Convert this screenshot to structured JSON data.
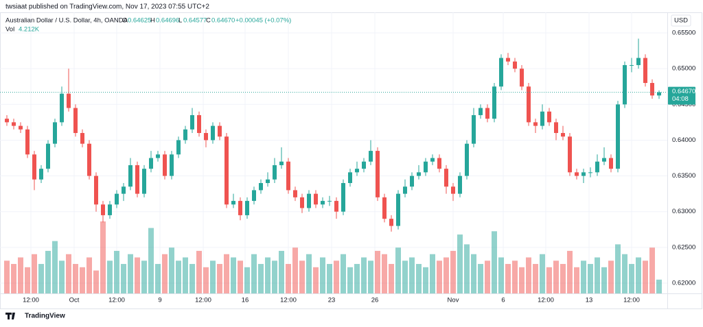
{
  "header": {
    "publisher": "twsiaat published on TradingView.com, Nov 17, 2023 07:55 UTC+2"
  },
  "footer": {
    "brand": "TradingView"
  },
  "chart_data": {
    "type": "candlestick",
    "legend": {
      "symbol": "Australian Dollar / U.S. Dollar, 4h, OANDA",
      "o_label": "O",
      "o": "0.64625",
      "h_label": "H",
      "h": "0.64696",
      "l_label": "L",
      "l": "0.64577",
      "c_label": "C",
      "c": "0.64670",
      "change": "+0.00045 (+0.07%)",
      "vol_label": "Vol",
      "vol": "4.212K"
    },
    "currency": "USD",
    "last_price_label": "0.64670",
    "countdown": "04:08",
    "up_color": "#26a69a",
    "down_color": "#ef5350",
    "open": [
      0.643,
      0.6425,
      0.642,
      0.6415,
      0.638,
      0.6345,
      0.636,
      0.6395,
      0.6425,
      0.6465,
      0.6445,
      0.641,
      0.6395,
      0.635,
      0.631,
      0.6295,
      0.631,
      0.6325,
      0.6335,
      0.6365,
      0.6325,
      0.636,
      0.6375,
      0.638,
      0.635,
      0.638,
      0.64,
      0.6415,
      0.6435,
      0.641,
      0.64,
      0.642,
      0.6405,
      0.631,
      0.6315,
      0.6295,
      0.6315,
      0.633,
      0.634,
      0.6345,
      0.6365,
      0.637,
      0.633,
      0.632,
      0.6305,
      0.6325,
      0.631,
      0.6315,
      0.6315,
      0.63,
      0.634,
      0.6355,
      0.636,
      0.637,
      0.6385,
      0.632,
      0.629,
      0.628,
      0.6325,
      0.6335,
      0.635,
      0.6355,
      0.637,
      0.6375,
      0.636,
      0.6335,
      0.6325,
      0.635,
      0.6395,
      0.6435,
      0.6445,
      0.643,
      0.6475,
      0.6515,
      0.651,
      0.65,
      0.6475,
      0.6425,
      0.642,
      0.644,
      0.6425,
      0.641,
      0.6405,
      0.6355,
      0.635,
      0.6355,
      0.6355,
      0.637,
      0.6375,
      0.636,
      0.645,
      0.6505,
      0.6505,
      0.6515,
      0.648,
      0.64625
    ],
    "high": [
      0.6435,
      0.643,
      0.6425,
      0.642,
      0.6385,
      0.6365,
      0.64,
      0.643,
      0.6475,
      0.65,
      0.645,
      0.6415,
      0.64,
      0.6355,
      0.6315,
      0.6315,
      0.633,
      0.634,
      0.6375,
      0.637,
      0.6365,
      0.6385,
      0.6385,
      0.6385,
      0.6385,
      0.6405,
      0.642,
      0.6445,
      0.644,
      0.6415,
      0.6425,
      0.6425,
      0.641,
      0.6325,
      0.632,
      0.632,
      0.6335,
      0.6345,
      0.6355,
      0.6375,
      0.639,
      0.6375,
      0.6335,
      0.6325,
      0.633,
      0.633,
      0.632,
      0.6322,
      0.632,
      0.6345,
      0.636,
      0.637,
      0.6375,
      0.64,
      0.639,
      0.6325,
      0.6295,
      0.633,
      0.6345,
      0.6355,
      0.6365,
      0.6375,
      0.638,
      0.638,
      0.6365,
      0.634,
      0.6355,
      0.64,
      0.6445,
      0.645,
      0.645,
      0.648,
      0.652,
      0.6522,
      0.6515,
      0.6505,
      0.648,
      0.643,
      0.645,
      0.6445,
      0.643,
      0.642,
      0.641,
      0.636,
      0.636,
      0.6362,
      0.638,
      0.639,
      0.638,
      0.6455,
      0.651,
      0.6515,
      0.6542,
      0.652,
      0.6485,
      0.64696
    ],
    "low": [
      0.642,
      0.6415,
      0.641,
      0.6375,
      0.633,
      0.634,
      0.6355,
      0.639,
      0.642,
      0.644,
      0.6405,
      0.639,
      0.6345,
      0.63,
      0.6285,
      0.629,
      0.6305,
      0.6315,
      0.633,
      0.632,
      0.632,
      0.6355,
      0.637,
      0.6345,
      0.6345,
      0.6375,
      0.6395,
      0.641,
      0.6405,
      0.639,
      0.6395,
      0.64,
      0.6305,
      0.6305,
      0.6288,
      0.629,
      0.631,
      0.6325,
      0.6335,
      0.634,
      0.636,
      0.6325,
      0.6315,
      0.6298,
      0.63,
      0.6305,
      0.6305,
      0.6308,
      0.629,
      0.6295,
      0.6335,
      0.635,
      0.6355,
      0.6365,
      0.6315,
      0.6285,
      0.6272,
      0.6275,
      0.632,
      0.633,
      0.6345,
      0.635,
      0.6365,
      0.6355,
      0.6325,
      0.6315,
      0.632,
      0.6345,
      0.639,
      0.643,
      0.6425,
      0.6425,
      0.647,
      0.6505,
      0.6495,
      0.647,
      0.642,
      0.641,
      0.6415,
      0.642,
      0.64,
      0.64,
      0.635,
      0.6345,
      0.634,
      0.6348,
      0.635,
      0.6365,
      0.6355,
      0.6355,
      0.6445,
      0.6495,
      0.65,
      0.6475,
      0.6458,
      0.64577
    ],
    "close": [
      0.6425,
      0.642,
      0.6415,
      0.638,
      0.6345,
      0.636,
      0.6395,
      0.6425,
      0.6465,
      0.6445,
      0.641,
      0.6395,
      0.635,
      0.631,
      0.6295,
      0.631,
      0.6325,
      0.6335,
      0.6365,
      0.6325,
      0.636,
      0.6375,
      0.638,
      0.635,
      0.638,
      0.64,
      0.6415,
      0.6435,
      0.641,
      0.64,
      0.642,
      0.6405,
      0.631,
      0.6315,
      0.6295,
      0.6315,
      0.633,
      0.634,
      0.6345,
      0.6365,
      0.637,
      0.633,
      0.632,
      0.6305,
      0.6325,
      0.631,
      0.6315,
      0.6315,
      0.63,
      0.634,
      0.6355,
      0.636,
      0.637,
      0.6385,
      0.632,
      0.629,
      0.628,
      0.6325,
      0.6335,
      0.635,
      0.6355,
      0.637,
      0.6375,
      0.636,
      0.6335,
      0.6325,
      0.635,
      0.6395,
      0.6435,
      0.6445,
      0.643,
      0.6475,
      0.6515,
      0.651,
      0.65,
      0.6475,
      0.6425,
      0.642,
      0.644,
      0.6425,
      0.641,
      0.6405,
      0.6355,
      0.635,
      0.6355,
      0.6355,
      0.637,
      0.6375,
      0.636,
      0.645,
      0.6505,
      0.6505,
      0.6515,
      0.648,
      0.64625,
      0.6467
    ],
    "volume": [
      10,
      9,
      11,
      8,
      12,
      9,
      13,
      16,
      10,
      12,
      9,
      8,
      11,
      7,
      22,
      10,
      13,
      9,
      12,
      11,
      10,
      20,
      9,
      12,
      14,
      10,
      11,
      9,
      13,
      8,
      10,
      9,
      12,
      11,
      10,
      8,
      12,
      9,
      11,
      10,
      13,
      9,
      14,
      10,
      12,
      8,
      11,
      9,
      10,
      12,
      8,
      9,
      11,
      10,
      13,
      12,
      9,
      14,
      10,
      11,
      9,
      8,
      12,
      10,
      11,
      13,
      18,
      15,
      12,
      9,
      10,
      19,
      11,
      9,
      10,
      8,
      11,
      9,
      12,
      8,
      10,
      9,
      13,
      8,
      10,
      9,
      11,
      8,
      10,
      15,
      12,
      9,
      11,
      10,
      14,
      4.212
    ],
    "xlim": [
      -1,
      96.2
    ],
    "ylim": [
      0.61856,
      0.65788
    ],
    "yticks": [
      {
        "value": 0.62,
        "label": "0.62000"
      },
      {
        "value": 0.625,
        "label": "0.62500"
      },
      {
        "value": 0.63,
        "label": "0.63000"
      },
      {
        "value": 0.635,
        "label": "0.63500"
      },
      {
        "value": 0.64,
        "label": "0.64000"
      },
      {
        "value": 0.645,
        "label": "0.64500"
      },
      {
        "value": 0.65,
        "label": "0.65000"
      },
      {
        "value": 0.655,
        "label": "0.65500"
      }
    ],
    "xticks": [
      {
        "value": 3.5,
        "label": "12:00"
      },
      {
        "value": 9.8,
        "label": "Oct"
      },
      {
        "value": 16,
        "label": "12:00"
      },
      {
        "value": 22.3,
        "label": "9"
      },
      {
        "value": 28.6,
        "label": "12:00"
      },
      {
        "value": 34.7,
        "label": "16"
      },
      {
        "value": 41,
        "label": "12:00"
      },
      {
        "value": 47.3,
        "label": "23"
      },
      {
        "value": 53.6,
        "label": "26"
      },
      {
        "value": 65,
        "label": "Nov"
      },
      {
        "value": 72.3,
        "label": "6"
      },
      {
        "value": 78.5,
        "label": "12:00"
      },
      {
        "value": 84.8,
        "label": "13"
      },
      {
        "value": 91,
        "label": "12:00"
      }
    ],
    "grid": true
  }
}
